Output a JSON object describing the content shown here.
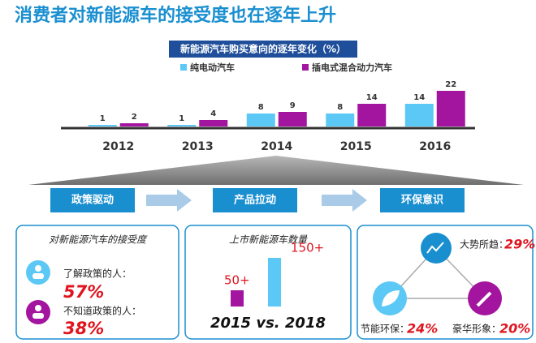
{
  "title": "消费者对新能源车的接受度也在逐年上升",
  "chart_data": {
    "type": "bar",
    "title": "新能源汽车购买意向的逐年变化（%）",
    "categories": [
      "2012",
      "2013",
      "2014",
      "2015",
      "2016"
    ],
    "series": [
      {
        "name": "纯电动汽车",
        "color": "#5cc8f5",
        "values": [
          1,
          1,
          8,
          8,
          14
        ]
      },
      {
        "name": "插电式混合动力汽车",
        "color": "#a3159f",
        "values": [
          2,
          4,
          9,
          14,
          22
        ]
      }
    ]
  },
  "flow": [
    "政策驱动",
    "产品拉动",
    "环保意识"
  ],
  "panels": [
    {
      "title": "对新能源汽车的接受度",
      "items": [
        {
          "label": "了解政策的人：",
          "value": "57%"
        },
        {
          "label": "不知道政策的人：",
          "value": "38%"
        }
      ]
    },
    {
      "title": "上市新能源车数量",
      "values": [
        50,
        150
      ],
      "value_labels": [
        "50+",
        "150+"
      ],
      "caption": "2015  vs. 2018"
    },
    {
      "items": [
        {
          "label": "大势所趋：",
          "value": "29%"
        },
        {
          "label": "节能环保：",
          "value": "24%"
        },
        {
          "label": "豪华形象：",
          "value": "20%"
        }
      ]
    }
  ]
}
